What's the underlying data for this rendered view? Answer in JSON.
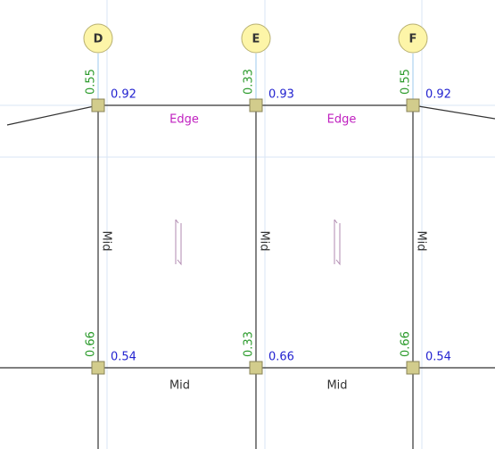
{
  "grids": [
    {
      "label": "D"
    },
    {
      "label": "E"
    },
    {
      "label": "F"
    }
  ],
  "top_nodes": [
    {
      "column": "0.55",
      "beam": "0.92"
    },
    {
      "column": "0.33",
      "beam": "0.93"
    },
    {
      "column": "0.55",
      "beam": "0.92"
    }
  ],
  "bottom_nodes": [
    {
      "column": "0.66",
      "beam": "0.54"
    },
    {
      "column": "0.33",
      "beam": "0.66"
    },
    {
      "column": "0.66",
      "beam": "0.54"
    }
  ],
  "top_beams": [
    "Edge",
    "Edge"
  ],
  "bottom_beams": [
    "Mid",
    "Mid"
  ],
  "columns": [
    "Mid",
    "Mid",
    "Mid"
  ]
}
